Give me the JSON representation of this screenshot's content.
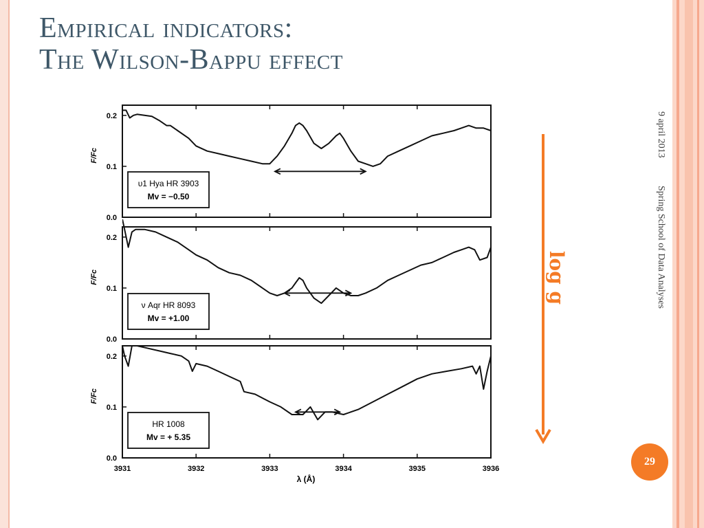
{
  "slide": {
    "title_line1": "Empirical indicators:",
    "title_line2": "The Wilson-Bappu effect",
    "date": "9 april 2013",
    "footer": "Spring School of Data Analyses",
    "page_number": "29",
    "annotation": "log g",
    "accent_color": "#f47b26",
    "title_color": "#3e5768"
  },
  "chart_data": {
    "type": "line",
    "xlabel": "λ (Å)",
    "xlim": [
      3931,
      3936
    ],
    "xticks": [
      3931,
      3932,
      3933,
      3934,
      3935,
      3936
    ],
    "ylabel": "F/Fc",
    "ylim": [
      0,
      0.22
    ],
    "yticks": [
      0.0,
      0.1,
      0.2
    ],
    "ytick_labels": [
      "0.0",
      "0.1",
      "0.2"
    ],
    "panels": [
      {
        "star": "υ1 Hya  HR 3903",
        "magnitude": "Mv = −0.50",
        "arrow_range": [
          3933.07,
          3934.3
        ],
        "x": [
          3931.0,
          3931.05,
          3931.1,
          3931.15,
          3931.2,
          3931.3,
          3931.4,
          3931.5,
          3931.6,
          3931.65,
          3931.75,
          3931.9,
          3932.0,
          3932.15,
          3932.3,
          3932.45,
          3932.6,
          3932.75,
          3932.9,
          3933.0,
          3933.1,
          3933.2,
          3933.3,
          3933.35,
          3933.4,
          3933.45,
          3933.5,
          3933.6,
          3933.7,
          3933.8,
          3933.9,
          3933.95,
          3934.0,
          3934.1,
          3934.2,
          3934.3,
          3934.4,
          3934.5,
          3934.6,
          3934.75,
          3934.9,
          3935.05,
          3935.2,
          3935.35,
          3935.5,
          3935.6,
          3935.7,
          3935.8,
          3935.9,
          3936.0
        ],
        "y": [
          0.21,
          0.21,
          0.195,
          0.2,
          0.202,
          0.2,
          0.198,
          0.19,
          0.18,
          0.18,
          0.17,
          0.155,
          0.14,
          0.13,
          0.125,
          0.12,
          0.115,
          0.11,
          0.105,
          0.105,
          0.12,
          0.14,
          0.165,
          0.18,
          0.185,
          0.18,
          0.17,
          0.145,
          0.135,
          0.145,
          0.16,
          0.165,
          0.155,
          0.13,
          0.11,
          0.105,
          0.1,
          0.105,
          0.12,
          0.13,
          0.14,
          0.15,
          0.16,
          0.165,
          0.17,
          0.175,
          0.18,
          0.175,
          0.175,
          0.17
        ]
      },
      {
        "star": "ν Aqr  HR 8093",
        "magnitude": "Mv = +1.00",
        "arrow_range": [
          3933.2,
          3934.1
        ],
        "x": [
          3931.0,
          3931.03,
          3931.08,
          3931.13,
          3931.18,
          3931.3,
          3931.45,
          3931.6,
          3931.75,
          3931.9,
          3932.0,
          3932.15,
          3932.3,
          3932.45,
          3932.6,
          3932.75,
          3932.9,
          3933.0,
          3933.1,
          3933.2,
          3933.3,
          3933.35,
          3933.4,
          3933.45,
          3933.5,
          3933.6,
          3933.7,
          3933.8,
          3933.9,
          3934.0,
          3934.1,
          3934.2,
          3934.3,
          3934.45,
          3934.6,
          3934.75,
          3934.9,
          3935.05,
          3935.2,
          3935.35,
          3935.5,
          3935.6,
          3935.7,
          3935.78,
          3935.85,
          3935.95,
          3936.0
        ],
        "y": [
          0.235,
          0.215,
          0.18,
          0.21,
          0.215,
          0.215,
          0.21,
          0.2,
          0.19,
          0.175,
          0.165,
          0.155,
          0.14,
          0.13,
          0.125,
          0.115,
          0.1,
          0.09,
          0.085,
          0.09,
          0.1,
          0.11,
          0.12,
          0.115,
          0.1,
          0.08,
          0.07,
          0.085,
          0.1,
          0.09,
          0.085,
          0.085,
          0.09,
          0.1,
          0.115,
          0.125,
          0.135,
          0.145,
          0.15,
          0.16,
          0.17,
          0.175,
          0.18,
          0.175,
          0.155,
          0.16,
          0.18
        ]
      },
      {
        "star": "HR 1008",
        "magnitude": "Mv = + 5.35",
        "arrow_range": [
          3933.35,
          3933.95
        ],
        "x": [
          3931.0,
          3931.03,
          3931.08,
          3931.13,
          3931.2,
          3931.35,
          3931.5,
          3931.65,
          3931.8,
          3931.9,
          3931.95,
          3932.0,
          3932.15,
          3932.3,
          3932.45,
          3932.6,
          3932.65,
          3932.8,
          3933.0,
          3933.15,
          3933.3,
          3933.45,
          3933.55,
          3933.65,
          3933.75,
          3933.85,
          3934.0,
          3934.2,
          3934.4,
          3934.6,
          3934.8,
          3935.0,
          3935.2,
          3935.4,
          3935.6,
          3935.75,
          3935.8,
          3935.85,
          3935.9,
          3935.95,
          3936.0
        ],
        "y": [
          0.22,
          0.2,
          0.18,
          0.22,
          0.22,
          0.215,
          0.21,
          0.205,
          0.2,
          0.19,
          0.17,
          0.185,
          0.18,
          0.17,
          0.16,
          0.15,
          0.13,
          0.125,
          0.11,
          0.1,
          0.085,
          0.085,
          0.1,
          0.075,
          0.09,
          0.09,
          0.085,
          0.095,
          0.11,
          0.125,
          0.14,
          0.155,
          0.165,
          0.17,
          0.175,
          0.18,
          0.165,
          0.18,
          0.135,
          0.17,
          0.2
        ]
      }
    ]
  }
}
